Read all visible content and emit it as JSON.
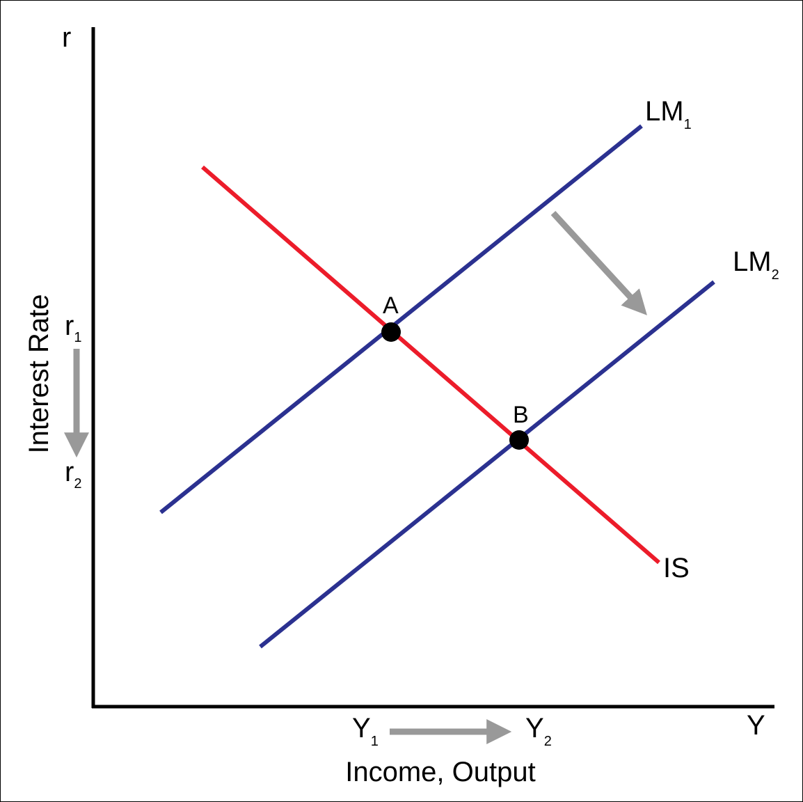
{
  "axes": {
    "y_symbol": "r",
    "x_symbol": "Y",
    "y_title": "Interest Rate",
    "x_title": "Income, Output"
  },
  "curves": {
    "lm1": {
      "label": "LM",
      "subscript": "1",
      "color": "#2B3190"
    },
    "lm2": {
      "label": "LM",
      "subscript": "2",
      "color": "#2B3190"
    },
    "is": {
      "label": "IS",
      "color": "#EC1C2A"
    }
  },
  "points": {
    "a": {
      "label": "A"
    },
    "b": {
      "label": "B"
    }
  },
  "levels": {
    "r1": {
      "base": "r",
      "subscript": "1"
    },
    "r2": {
      "base": "r",
      "subscript": "2"
    },
    "y1": {
      "base": "Y",
      "subscript": "1"
    },
    "y2": {
      "base": "Y",
      "subscript": "2"
    }
  },
  "arrow_color": "#999999"
}
